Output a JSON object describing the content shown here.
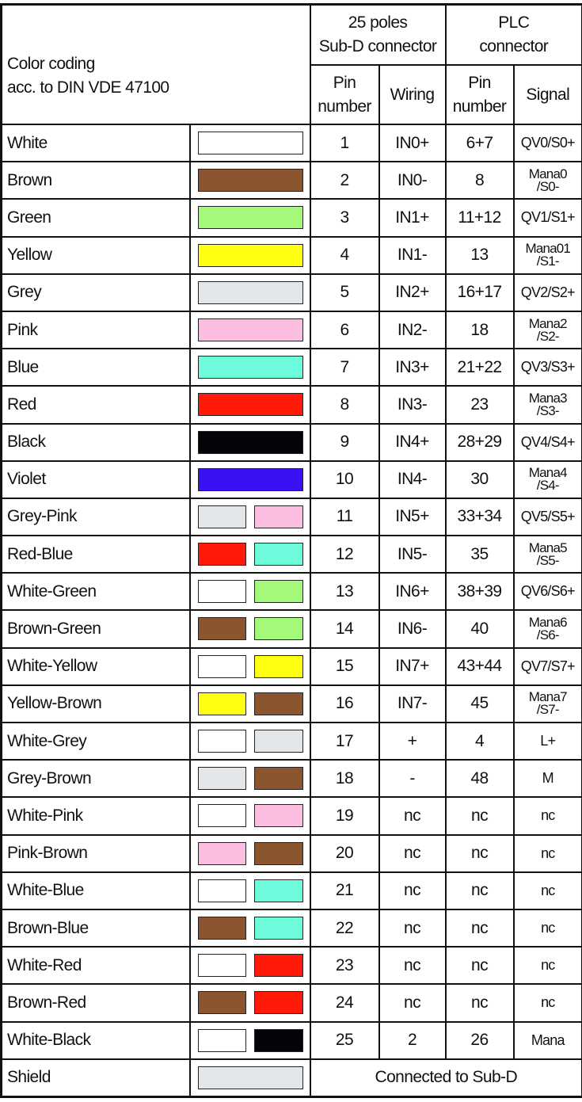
{
  "header": {
    "color_coding": "Color coding\nacc. to DIN VDE 47100",
    "subd_group": "25 poles\nSub-D connector",
    "plc_group": "PLC\nconnector",
    "pin_number": "Pin\nnumber",
    "wiring": "Wiring",
    "plc_pin_number": "Pin\nnumber",
    "signal": "Signal"
  },
  "rows": [
    {
      "name": "White",
      "colors": [
        "#ffffff"
      ],
      "pin": "1",
      "wiring": "IN0+",
      "plc_pin": "6+7",
      "signal": "QV0/S0+"
    },
    {
      "name": "Brown",
      "colors": [
        "#8b5530"
      ],
      "pin": "2",
      "wiring": "IN0-",
      "plc_pin": "8",
      "signal": "Mana0\n/S0-"
    },
    {
      "name": "Green",
      "colors": [
        "#a4f87a"
      ],
      "pin": "3",
      "wiring": "IN1+",
      "plc_pin": "11+12",
      "signal": "QV1/S1+"
    },
    {
      "name": "Yellow",
      "colors": [
        "#ffff14"
      ],
      "pin": "4",
      "wiring": "IN1-",
      "plc_pin": "13",
      "signal": "Mana01\n/S1-"
    },
    {
      "name": "Grey",
      "colors": [
        "#e3e7e9"
      ],
      "pin": "5",
      "wiring": "IN2+",
      "plc_pin": "16+17",
      "signal": "QV2/S2+"
    },
    {
      "name": "Pink",
      "colors": [
        "#fbbde0"
      ],
      "pin": "6",
      "wiring": "IN2-",
      "plc_pin": "18",
      "signal": "Mana2\n/S2-"
    },
    {
      "name": "Blue",
      "colors": [
        "#6ffcdc"
      ],
      "pin": "7",
      "wiring": "IN3+",
      "plc_pin": "21+22",
      "signal": "QV3/S3+"
    },
    {
      "name": "Red",
      "colors": [
        "#ff1a0a"
      ],
      "pin": "8",
      "wiring": "IN3-",
      "plc_pin": "23",
      "signal": "Mana3\n/S3-"
    },
    {
      "name": "Black",
      "colors": [
        "#020408"
      ],
      "pin": "9",
      "wiring": "IN4+",
      "plc_pin": "28+29",
      "signal": "QV4/S4+"
    },
    {
      "name": "Violet",
      "colors": [
        "#3a10f5"
      ],
      "pin": "10",
      "wiring": "IN4-",
      "plc_pin": "30",
      "signal": "Mana4\n/S4-"
    },
    {
      "name": "Grey-Pink",
      "colors": [
        "#e3e7e9",
        "#fbbde0"
      ],
      "pin": "11",
      "wiring": "IN5+",
      "plc_pin": "33+34",
      "signal": "QV5/S5+"
    },
    {
      "name": "Red-Blue",
      "colors": [
        "#ff1a0a",
        "#6ffcdc"
      ],
      "pin": "12",
      "wiring": "IN5-",
      "plc_pin": "35",
      "signal": "Mana5\n/S5-"
    },
    {
      "name": "White-Green",
      "colors": [
        "#ffffff",
        "#a4f87a"
      ],
      "pin": "13",
      "wiring": "IN6+",
      "plc_pin": "38+39",
      "signal": "QV6/S6+"
    },
    {
      "name": "Brown-Green",
      "colors": [
        "#8b5530",
        "#a4f87a"
      ],
      "pin": "14",
      "wiring": "IN6-",
      "plc_pin": "40",
      "signal": "Mana6\n/S6-"
    },
    {
      "name": "White-Yellow",
      "colors": [
        "#ffffff",
        "#ffff14"
      ],
      "pin": "15",
      "wiring": "IN7+",
      "plc_pin": "43+44",
      "signal": "QV7/S7+"
    },
    {
      "name": "Yellow-Brown",
      "colors": [
        "#ffff14",
        "#8b5530"
      ],
      "pin": "16",
      "wiring": "IN7-",
      "plc_pin": "45",
      "signal": "Mana7\n/S7-"
    },
    {
      "name": "White-Grey",
      "colors": [
        "#ffffff",
        "#e3e7e9"
      ],
      "pin": "17",
      "wiring": "+",
      "plc_pin": "4",
      "signal": "L+"
    },
    {
      "name": "Grey-Brown",
      "colors": [
        "#e3e7e9",
        "#8b5530"
      ],
      "pin": "18",
      "wiring": "-",
      "plc_pin": "48",
      "signal": "M"
    },
    {
      "name": "White-Pink",
      "colors": [
        "#ffffff",
        "#fbbde0"
      ],
      "pin": "19",
      "wiring": "nc",
      "plc_pin": "nc",
      "signal": "nc"
    },
    {
      "name": "Pink-Brown",
      "colors": [
        "#fbbde0",
        "#8b5530"
      ],
      "pin": "20",
      "wiring": "nc",
      "plc_pin": "nc",
      "signal": "nc"
    },
    {
      "name": "White-Blue",
      "colors": [
        "#ffffff",
        "#6ffcdc"
      ],
      "pin": "21",
      "wiring": "nc",
      "plc_pin": "nc",
      "signal": "nc"
    },
    {
      "name": "Brown-Blue",
      "colors": [
        "#8b5530",
        "#6ffcdc"
      ],
      "pin": "22",
      "wiring": "nc",
      "plc_pin": "nc",
      "signal": "nc"
    },
    {
      "name": "White-Red",
      "colors": [
        "#ffffff",
        "#ff1a0a"
      ],
      "pin": "23",
      "wiring": "nc",
      "plc_pin": "nc",
      "signal": "nc"
    },
    {
      "name": "Brown-Red",
      "colors": [
        "#8b5530",
        "#ff1a0a"
      ],
      "pin": "24",
      "wiring": "nc",
      "plc_pin": "nc",
      "signal": "nc"
    },
    {
      "name": "White-Black",
      "colors": [
        "#ffffff",
        "#020408"
      ],
      "pin": "25",
      "wiring": "2",
      "plc_pin": "26",
      "signal": "Mana"
    }
  ],
  "shield": {
    "name": "Shield",
    "colors": [
      "#e3e7e9"
    ],
    "note": "Connected to Sub-D"
  }
}
